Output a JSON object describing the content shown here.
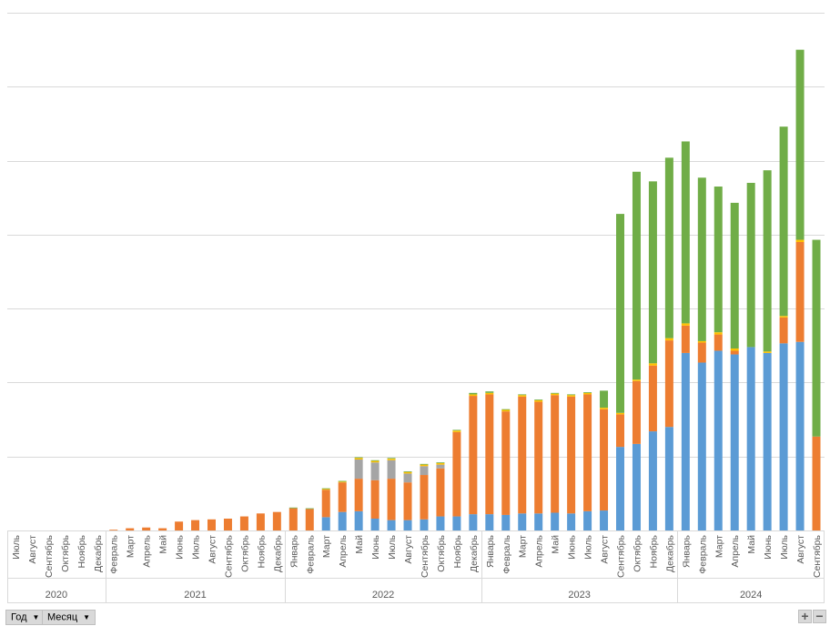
{
  "filters": {
    "year_label": "Год",
    "month_label": "Месяц",
    "expand_label": "+",
    "collapse_label": "−"
  },
  "colors": {
    "blue": "#5b9bd5",
    "orange": "#ed7d31",
    "gray": "#a5a5a5",
    "yellow": "#ffc000",
    "green": "#70ad47",
    "grid": "#d9d9d9",
    "axis_text": "#595959"
  },
  "chart_data": {
    "type": "bar",
    "stacked": true,
    "grid": true,
    "legend": "none",
    "ylim": [
      0,
      700
    ],
    "ytick_step": 100,
    "y_tick_labels_visible": false,
    "year_groups": [
      {
        "label": "2020",
        "count": 6
      },
      {
        "label": "2021",
        "count": 11
      },
      {
        "label": "2022",
        "count": 12
      },
      {
        "label": "2023",
        "count": 12
      },
      {
        "label": "2024",
        "count": 9
      }
    ],
    "categories": [
      "Июль",
      "Август",
      "Сентябрь",
      "Октябрь",
      "Ноябрь",
      "Декабрь",
      "Февраль",
      "Март",
      "Апрель",
      "Май",
      "Июнь",
      "Июль",
      "Август",
      "Сентябрь",
      "Октябрь",
      "Ноябрь",
      "Декабрь",
      "Январь",
      "Февраль",
      "Март",
      "Апрель",
      "Май",
      "Июнь",
      "Июль",
      "Август",
      "Сентябрь",
      "Октябрь",
      "Ноябрь",
      "Декабрь",
      "Январь",
      "Февраль",
      "Март",
      "Апрель",
      "Май",
      "Июнь",
      "Июль",
      "Август",
      "Сентябрь",
      "Октябрь",
      "Ноябрь",
      "Декабрь",
      "Январь",
      "Февраль",
      "Март",
      "Апрель",
      "Май",
      "Июнь",
      "Июль",
      "Август",
      "Сентябрь"
    ],
    "series": [
      {
        "color_key": "blue",
        "values": [
          0,
          0,
          0,
          0,
          0,
          0,
          0,
          0,
          0,
          0,
          0,
          0,
          0,
          0,
          0,
          0,
          0,
          0,
          0,
          18,
          25,
          26,
          16,
          14,
          14,
          15,
          19,
          19,
          22,
          22,
          21,
          23,
          23,
          24,
          23,
          26,
          27,
          113,
          117,
          134,
          140,
          240,
          227,
          243,
          238,
          248,
          240,
          253,
          255,
          0
        ]
      },
      {
        "color_key": "orange",
        "values": [
          0,
          0,
          0,
          0,
          0,
          0,
          1,
          3,
          4,
          3,
          12,
          14,
          15,
          16,
          19,
          23,
          25,
          30,
          29,
          37,
          40,
          44,
          52,
          56,
          51,
          60,
          65,
          114,
          160,
          162,
          140,
          158,
          151,
          159,
          158,
          158,
          137,
          44,
          85,
          89,
          117,
          37,
          27,
          22,
          5,
          0,
          0,
          35,
          135,
          127
        ]
      },
      {
        "color_key": "gray",
        "values": [
          0,
          0,
          0,
          0,
          0,
          0,
          0,
          0,
          0,
          0,
          0,
          0,
          0,
          0,
          0,
          0,
          0,
          0,
          0,
          0,
          0,
          26,
          24,
          25,
          12,
          12,
          5,
          0,
          0,
          0,
          0,
          0,
          0,
          0,
          0,
          0,
          0,
          0,
          0,
          0,
          0,
          0,
          0,
          0,
          0,
          0,
          0,
          0,
          0,
          0
        ]
      },
      {
        "color_key": "yellow",
        "values": [
          0,
          0,
          0,
          0,
          0,
          0,
          0,
          0,
          0,
          0,
          0,
          0,
          0,
          0,
          0,
          0,
          0,
          0,
          0,
          1,
          1,
          2,
          2,
          2,
          2,
          2,
          2,
          2,
          2,
          2,
          2,
          2,
          2,
          2,
          2,
          2,
          2,
          2,
          2,
          3,
          3,
          3,
          2,
          3,
          3,
          0,
          2,
          2,
          3,
          0
        ]
      },
      {
        "color_key": "green",
        "values": [
          0,
          0,
          0,
          0,
          0,
          0,
          0,
          0,
          0,
          0,
          0,
          0,
          0,
          0,
          0,
          0,
          0,
          1,
          1,
          1,
          1,
          1,
          1,
          1,
          1,
          1,
          1,
          1,
          2,
          2,
          1,
          1,
          1,
          1,
          1,
          1,
          23,
          269,
          281,
          246,
          244,
          246,
          221,
          197,
          197,
          222,
          245,
          256,
          257,
          266
        ]
      }
    ]
  }
}
